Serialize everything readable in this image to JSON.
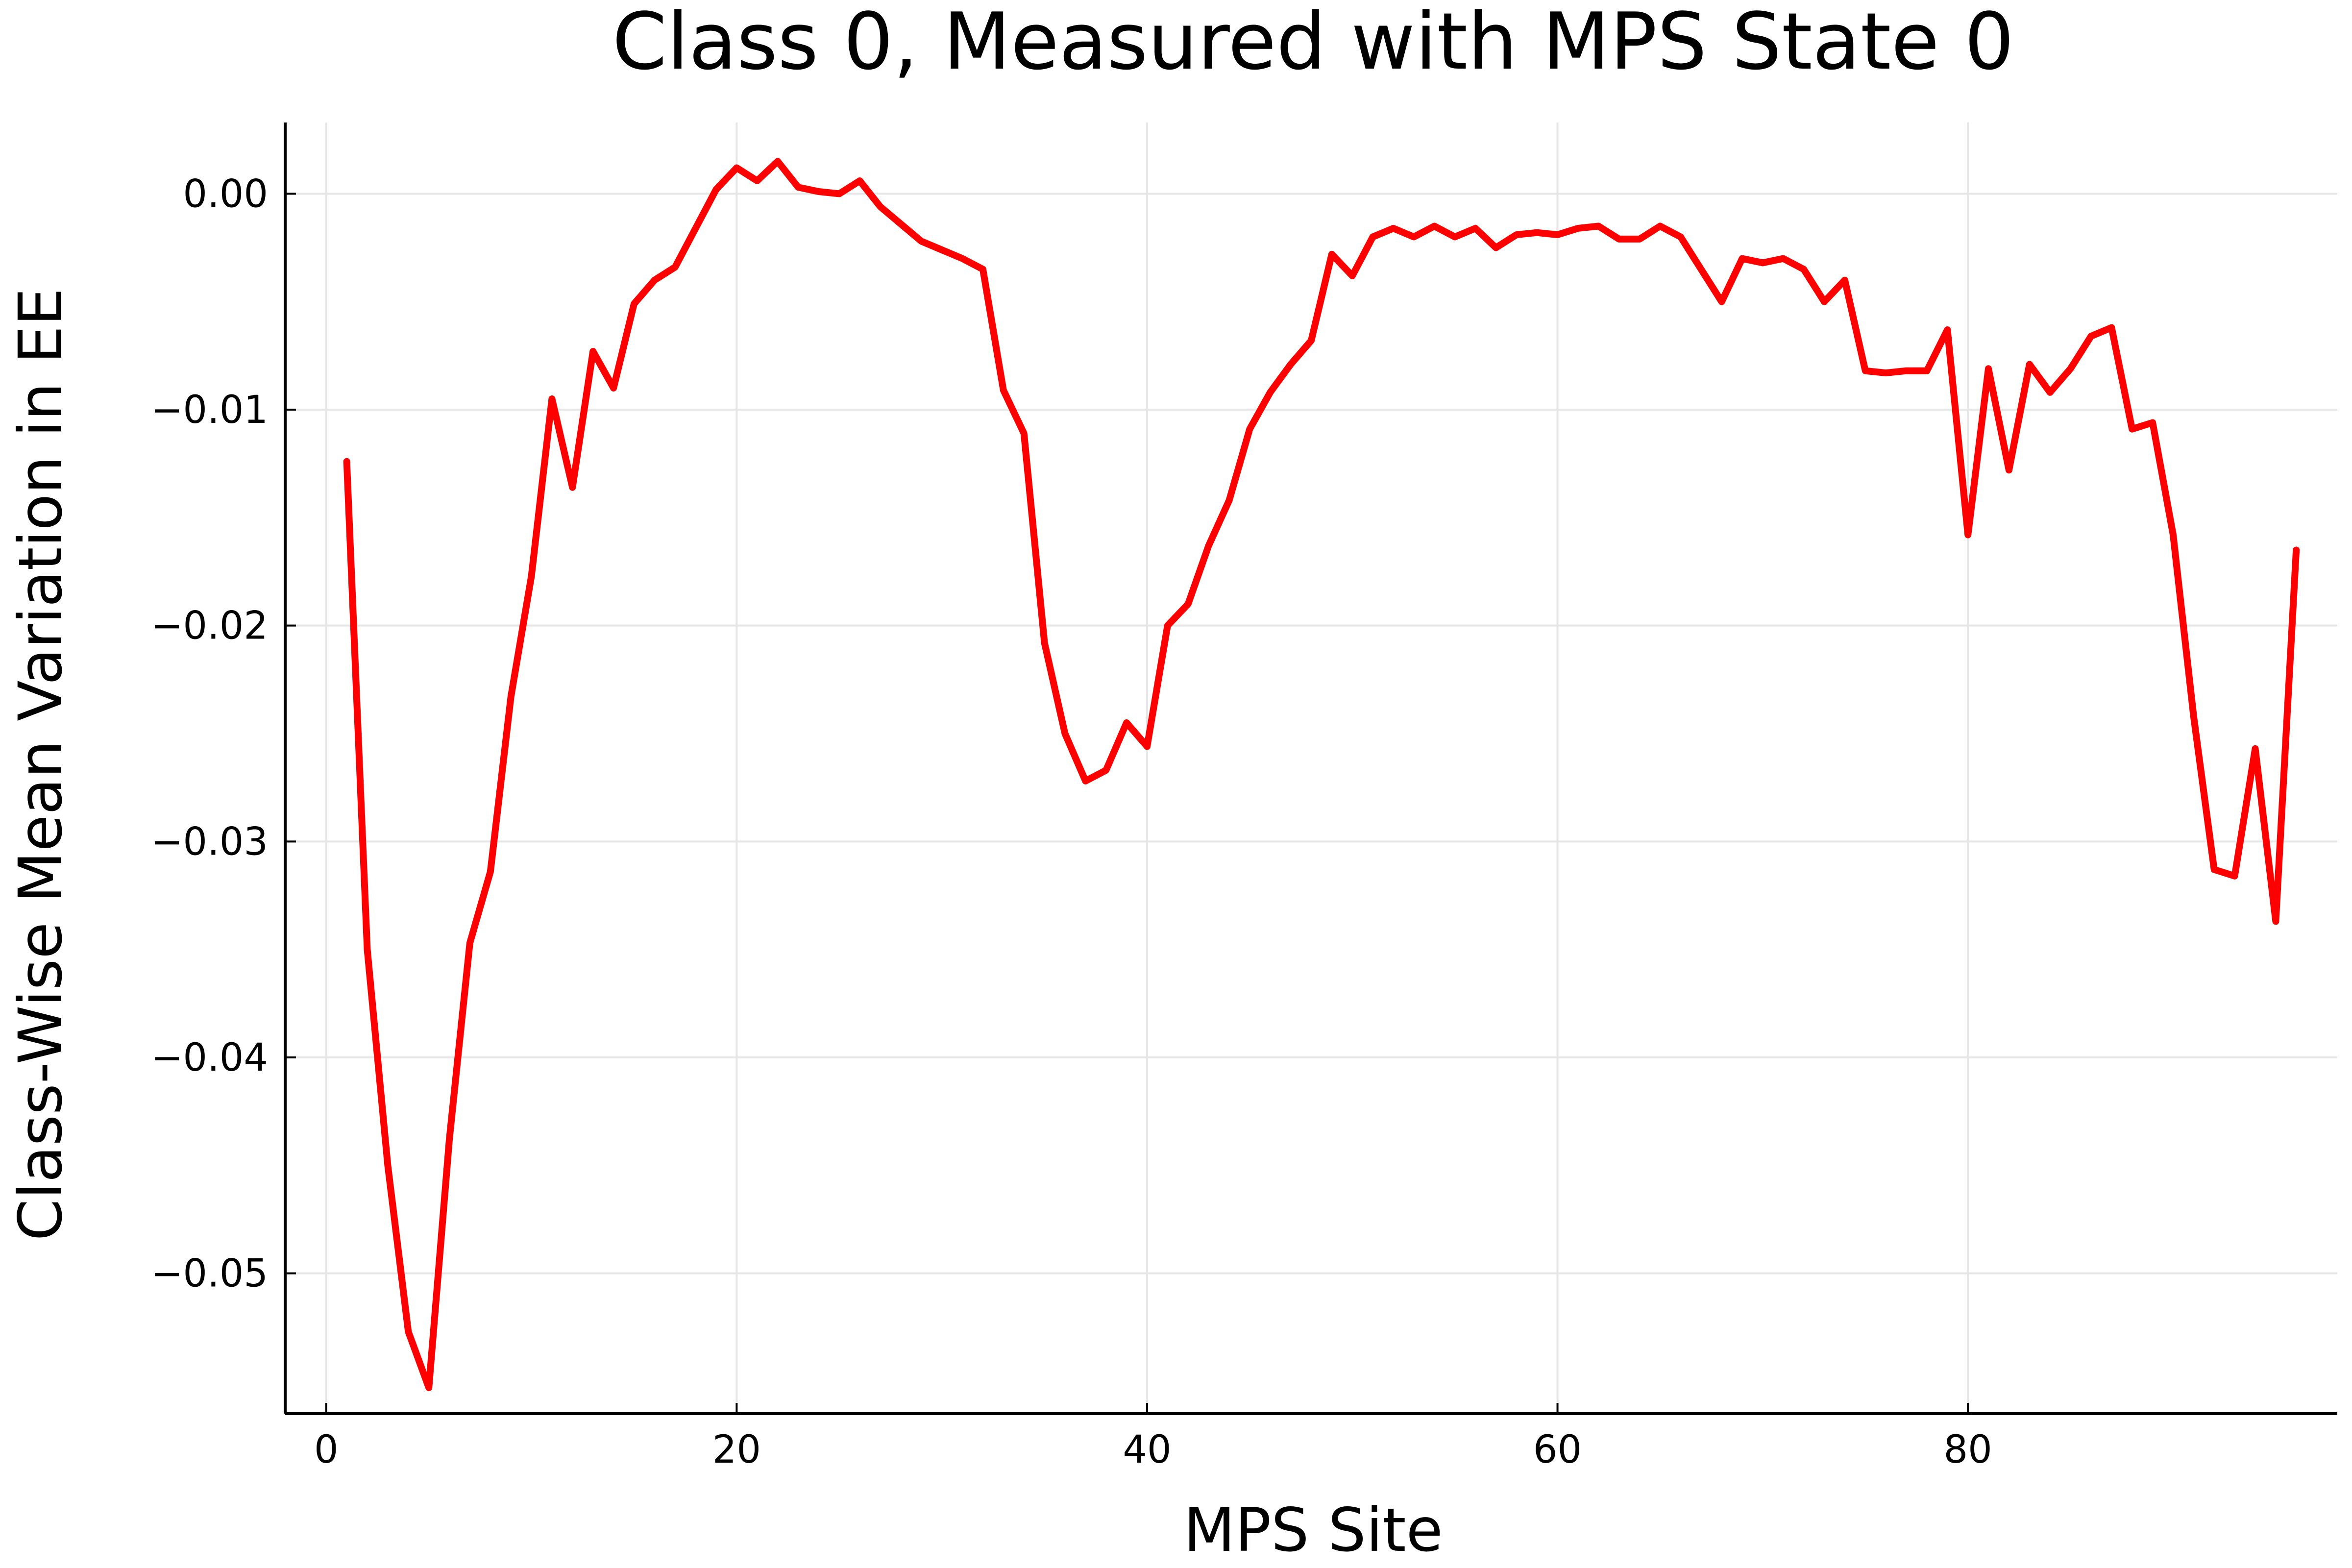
{
  "chart_data": {
    "type": "line",
    "title": "Class 0, Measured with MPS State 0",
    "xlabel": "MPS Site",
    "ylabel": "Class-Wise Mean Variation in EE",
    "xlim": [
      -2,
      98
    ],
    "ylim": [
      -0.0565,
      0.0033
    ],
    "xticks": [
      0,
      20,
      40,
      60,
      80
    ],
    "xtick_labels": [
      "0",
      "20",
      "40",
      "60",
      "80"
    ],
    "yticks": [
      0.0,
      -0.01,
      -0.02,
      -0.03,
      -0.04,
      -0.05
    ],
    "ytick_labels": [
      "0.00",
      "−0.01",
      "−0.02",
      "−0.03",
      "−0.04",
      "−0.05"
    ],
    "grid": true,
    "legend": "none",
    "colors": {
      "line": "#ff0000",
      "grid": "#e6e6e6",
      "axis": "#000000"
    },
    "series": [
      {
        "color": "#ff0000",
        "x": [
          1,
          2,
          3,
          4,
          5,
          6,
          7,
          8,
          9,
          10,
          11,
          12,
          13,
          14,
          15,
          16,
          17,
          18,
          19,
          20,
          21,
          22,
          23,
          24,
          25,
          26,
          27,
          28,
          29,
          30,
          31,
          32,
          33,
          34,
          35,
          36,
          37,
          38,
          39,
          40,
          41,
          42,
          43,
          44,
          45,
          46,
          47,
          48,
          49,
          50,
          51,
          52,
          53,
          54,
          55,
          56,
          57,
          58,
          59,
          60,
          61,
          62,
          63,
          64,
          65,
          66,
          67,
          68,
          69,
          70,
          71,
          72,
          73,
          74,
          75,
          76,
          77,
          78,
          79,
          80,
          81,
          82,
          83,
          84,
          85,
          86,
          87,
          88,
          89,
          90,
          91,
          92,
          93,
          94,
          95,
          96
        ],
        "y": [
          -0.0124,
          -0.035,
          -0.045,
          -0.0527,
          -0.0553,
          -0.0438,
          -0.0347,
          -0.0314,
          -0.0233,
          -0.0177,
          -0.0095,
          -0.0136,
          -0.0073,
          -0.009,
          -0.0051,
          -0.004,
          -0.0034,
          -0.0016,
          0.0002,
          0.0012,
          0.0006,
          0.0015,
          0.0003,
          0.0001,
          0.0,
          0.0006,
          -0.0006,
          -0.0014,
          -0.0022,
          -0.0026,
          -0.003,
          -0.0035,
          -0.0091,
          -0.0111,
          -0.0208,
          -0.025,
          -0.0272,
          -0.0267,
          -0.0245,
          -0.0256,
          -0.02,
          -0.019,
          -0.0163,
          -0.0142,
          -0.0109,
          -0.0092,
          -0.0079,
          -0.0068,
          -0.0028,
          -0.0038,
          -0.002,
          -0.0016,
          -0.002,
          -0.0015,
          -0.002,
          -0.0016,
          -0.0025,
          -0.0019,
          -0.0018,
          -0.0019,
          -0.0016,
          -0.0015,
          -0.0021,
          -0.0021,
          -0.0015,
          -0.002,
          -0.0035,
          -0.005,
          -0.003,
          -0.0032,
          -0.003,
          -0.0035,
          -0.005,
          -0.004,
          -0.0082,
          -0.0083,
          -0.0082,
          -0.0082,
          -0.0063,
          -0.0158,
          -0.0081,
          -0.0128,
          -0.0079,
          -0.0092,
          -0.0081,
          -0.0066,
          -0.0062,
          -0.0109,
          -0.0106,
          -0.0158,
          -0.0242,
          -0.0313,
          -0.0316,
          -0.0257,
          -0.0337,
          -0.0165
        ]
      }
    ]
  }
}
